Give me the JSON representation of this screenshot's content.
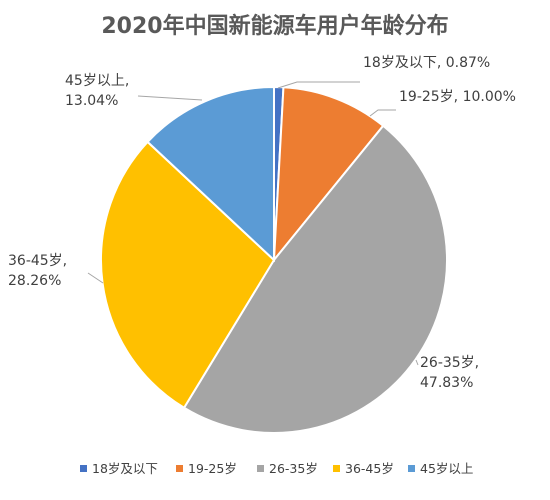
{
  "chart_data": {
    "type": "pie",
    "title": "2020年中国新能源车用户年龄分布",
    "categories": [
      "18岁及以下",
      "19-25岁",
      "26-35岁",
      "36-45岁",
      "45岁以上"
    ],
    "values": [
      0.87,
      10.0,
      47.83,
      28.26,
      13.04
    ],
    "value_labels": [
      "0.87%",
      "10.00%",
      "47.83%",
      "28.26%",
      "13.04%"
    ],
    "colors": [
      "#4472C4",
      "#ED7D31",
      "#A5A5A5",
      "#FFC000",
      "#5B9BD5"
    ],
    "legend_position": "bottom"
  }
}
